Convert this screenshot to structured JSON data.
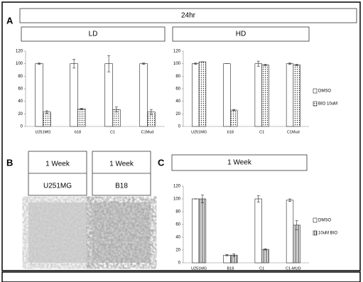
{
  "figure": {
    "labels": [
      "A",
      "B",
      "C"
    ],
    "header": "24hr",
    "images": [
      {
        "line1": "1 Week",
        "line2": "U251MG"
      },
      {
        "line1": "1 Week",
        "line2": "B18"
      }
    ]
  },
  "chart_data": [
    {
      "type": "bar",
      "title": "LD",
      "categories": [
        "U251MG",
        "b18",
        "C1",
        "C1Mud"
      ],
      "series": [
        {
          "color": "#ffffff",
          "pattern": "none",
          "values": [
            100,
            100,
            100,
            100
          ],
          "errors": [
            1,
            7,
            13,
            1
          ]
        },
        {
          "color": "#ffffff",
          "pattern": "dots",
          "values": [
            23,
            28,
            27,
            23
          ],
          "errors": [
            2,
            1,
            4,
            4
          ]
        }
      ],
      "ylim": [
        0,
        120
      ],
      "yticks": [
        0,
        20,
        40,
        60,
        80,
        100,
        120
      ]
    },
    {
      "type": "bar",
      "title": "HD",
      "categories": [
        "U251MG",
        "b18",
        "C1",
        "C1Mud"
      ],
      "series": [
        {
          "name": "DMSO",
          "color": "#ffffff",
          "pattern": "none",
          "values": [
            100,
            100,
            100,
            100
          ],
          "errors": [
            1,
            0,
            4,
            1
          ]
        },
        {
          "name": "BIO 10uM",
          "color": "#ffffff",
          "pattern": "dots",
          "values": [
            103,
            26,
            98,
            98
          ],
          "errors": [
            0,
            1,
            1,
            1
          ]
        }
      ],
      "ylim": [
        0,
        120
      ],
      "yticks": [
        0,
        20,
        40,
        60,
        80,
        100,
        120
      ],
      "legend": "right"
    },
    {
      "type": "bar",
      "title": "1 Week",
      "categories": [
        "U251MG",
        "B18",
        "C1",
        "C1-MUD"
      ],
      "series": [
        {
          "name": "DMSO",
          "color": "#ffffff",
          "pattern": "none",
          "values": [
            100,
            12,
            100,
            98
          ],
          "errors": [
            0,
            1,
            5,
            2
          ]
        },
        {
          "name": "10uM BIO",
          "color": "#ffffff",
          "pattern": "stripes",
          "values": [
            100,
            12,
            21,
            59
          ],
          "errors": [
            6,
            2,
            1,
            7
          ]
        }
      ],
      "ylim": [
        0,
        120
      ],
      "yticks": [
        0,
        20,
        40,
        60,
        80,
        100,
        120
      ],
      "legend": "right"
    }
  ]
}
